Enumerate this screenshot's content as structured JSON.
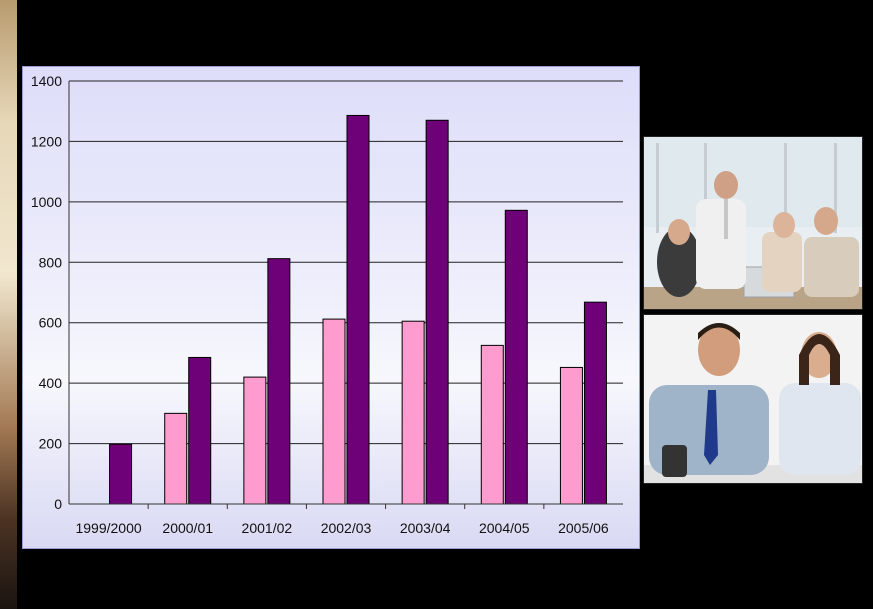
{
  "chart_data": {
    "type": "bar",
    "categories": [
      "1999/2000",
      "2000/01",
      "2001/02",
      "2002/03",
      "2003/04",
      "2004/05",
      "2005/06"
    ],
    "series": [
      {
        "values": [
          0,
          300,
          420,
          612,
          605,
          525,
          452
        ],
        "color": "#ff9ccf"
      },
      {
        "values": [
          198,
          485,
          812,
          1286,
          1270,
          972,
          668
        ],
        "color": "#6e0078"
      }
    ],
    "yticks": [
      0,
      200,
      400,
      600,
      800,
      1000,
      1200,
      1400
    ],
    "ylim": [
      0,
      1400
    ],
    "grid": true,
    "title": "",
    "xlabel": "",
    "ylabel": ""
  },
  "photos": [
    {
      "name": "business-team-photo"
    },
    {
      "name": "smiling-colleagues-photo"
    }
  ],
  "colors": {
    "background": "#000000",
    "panel_top": "#ddddfa",
    "panel_bottom": "#f7f7fd",
    "gridline": "#222222"
  }
}
